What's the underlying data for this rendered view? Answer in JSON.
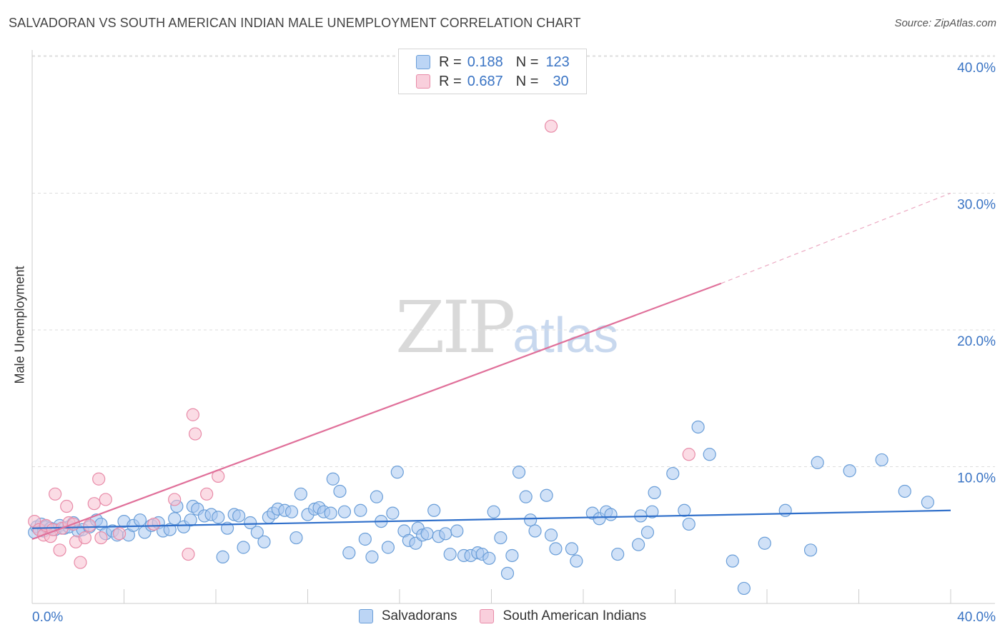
{
  "title": "SALVADORAN VS SOUTH AMERICAN INDIAN MALE UNEMPLOYMENT CORRELATION CHART",
  "source": "Source: ZipAtlas.com",
  "watermark": {
    "zip": "ZIP",
    "atlas": "atlas"
  },
  "colors": {
    "blue_fill": "#a9c8f0",
    "blue_stroke": "#6a9ed8",
    "blue_line": "#2f6fca",
    "pink_fill": "#f7bfd0",
    "pink_stroke": "#e88ba8",
    "pink_line": "#e0709a",
    "tick_label": "#3a74c4",
    "grid": "#dddddd"
  },
  "legend_top": [
    {
      "r_label": "R =",
      "r_value": "0.188",
      "n_label": "N =",
      "n_value": "123"
    },
    {
      "r_label": "R =",
      "r_value": "0.687",
      "n_label": "N =",
      "n_value": "30"
    }
  ],
  "chart_data": {
    "type": "scatter",
    "title": "SALVADORAN VS SOUTH AMERICAN INDIAN MALE UNEMPLOYMENT CORRELATION CHART",
    "xlabel": "",
    "ylabel": "Male Unemployment",
    "xlim": [
      0,
      40
    ],
    "ylim": [
      0,
      42
    ],
    "x_tick_labels": [
      "0.0%",
      "40.0%"
    ],
    "y_ticks": [
      10,
      20,
      30,
      40
    ],
    "y_tick_labels": [
      "10.0%",
      "20.0%",
      "30.0%",
      "40.0%"
    ],
    "grid": "horizontal dashed",
    "legend_position": "top-center and bottom",
    "series": [
      {
        "name": "Salvadorans",
        "color": "#a9c8f0",
        "trend": {
          "x1": 0,
          "y1": 5.5,
          "x2": 40,
          "y2": 6.8
        },
        "points": [
          [
            0.1,
            5.2
          ],
          [
            0.2,
            5.6
          ],
          [
            0.3,
            5.4
          ],
          [
            0.4,
            5.8
          ],
          [
            0.5,
            5.3
          ],
          [
            0.6,
            5.6
          ],
          [
            0.8,
            5.5
          ],
          [
            1.0,
            5.4
          ],
          [
            1.2,
            5.7
          ],
          [
            1.4,
            5.5
          ],
          [
            1.6,
            5.6
          ],
          [
            1.8,
            5.9
          ],
          [
            2.0,
            5.3
          ],
          [
            2.2,
            5.4
          ],
          [
            2.5,
            5.6
          ],
          [
            2.8,
            6.1
          ],
          [
            3.0,
            5.8
          ],
          [
            3.2,
            5.1
          ],
          [
            3.5,
            5.3
          ],
          [
            3.7,
            5.0
          ],
          [
            4.0,
            6.0
          ],
          [
            4.2,
            5.0
          ],
          [
            4.4,
            5.7
          ],
          [
            4.7,
            6.1
          ],
          [
            4.9,
            5.2
          ],
          [
            5.2,
            5.7
          ],
          [
            5.5,
            5.9
          ],
          [
            5.7,
            5.3
          ],
          [
            6.0,
            5.4
          ],
          [
            6.2,
            6.2
          ],
          [
            6.3,
            7.1
          ],
          [
            6.6,
            5.6
          ],
          [
            6.9,
            6.1
          ],
          [
            7.0,
            7.1
          ],
          [
            7.2,
            6.9
          ],
          [
            7.5,
            6.4
          ],
          [
            7.8,
            6.5
          ],
          [
            8.1,
            6.3
          ],
          [
            8.3,
            3.4
          ],
          [
            8.5,
            5.5
          ],
          [
            8.8,
            6.5
          ],
          [
            9.0,
            6.4
          ],
          [
            9.2,
            4.1
          ],
          [
            9.5,
            5.9
          ],
          [
            9.8,
            5.2
          ],
          [
            10.1,
            4.5
          ],
          [
            10.3,
            6.3
          ],
          [
            10.5,
            6.6
          ],
          [
            10.7,
            6.9
          ],
          [
            11.0,
            6.8
          ],
          [
            11.3,
            6.7
          ],
          [
            11.5,
            4.8
          ],
          [
            11.7,
            8.0
          ],
          [
            12.0,
            6.5
          ],
          [
            12.3,
            6.9
          ],
          [
            12.5,
            7.0
          ],
          [
            12.7,
            6.7
          ],
          [
            13.0,
            6.6
          ],
          [
            13.1,
            9.1
          ],
          [
            13.4,
            8.2
          ],
          [
            13.6,
            6.7
          ],
          [
            13.8,
            3.7
          ],
          [
            14.3,
            6.8
          ],
          [
            14.5,
            4.7
          ],
          [
            14.8,
            3.4
          ],
          [
            15.0,
            7.8
          ],
          [
            15.2,
            6.0
          ],
          [
            15.5,
            4.1
          ],
          [
            15.7,
            6.6
          ],
          [
            15.9,
            9.6
          ],
          [
            16.2,
            5.3
          ],
          [
            16.4,
            4.6
          ],
          [
            16.7,
            4.4
          ],
          [
            16.8,
            5.5
          ],
          [
            17.0,
            5.0
          ],
          [
            17.2,
            5.1
          ],
          [
            17.5,
            6.8
          ],
          [
            17.7,
            4.9
          ],
          [
            18.0,
            5.1
          ],
          [
            18.2,
            3.6
          ],
          [
            18.5,
            5.3
          ],
          [
            18.8,
            3.5
          ],
          [
            19.1,
            3.5
          ],
          [
            19.4,
            3.7
          ],
          [
            19.6,
            3.6
          ],
          [
            19.9,
            3.3
          ],
          [
            20.1,
            6.7
          ],
          [
            20.4,
            4.8
          ],
          [
            20.7,
            2.2
          ],
          [
            20.9,
            3.5
          ],
          [
            21.2,
            9.6
          ],
          [
            21.5,
            7.8
          ],
          [
            21.7,
            6.1
          ],
          [
            21.9,
            5.3
          ],
          [
            22.4,
            7.9
          ],
          [
            22.6,
            5.0
          ],
          [
            22.8,
            4.0
          ],
          [
            23.5,
            4.0
          ],
          [
            23.7,
            3.1
          ],
          [
            24.4,
            6.6
          ],
          [
            24.7,
            6.2
          ],
          [
            25.0,
            6.7
          ],
          [
            25.2,
            6.5
          ],
          [
            25.5,
            3.6
          ],
          [
            26.4,
            4.3
          ],
          [
            26.5,
            6.4
          ],
          [
            26.8,
            5.2
          ],
          [
            27.0,
            6.7
          ],
          [
            27.1,
            8.1
          ],
          [
            27.9,
            9.5
          ],
          [
            28.4,
            6.8
          ],
          [
            28.6,
            5.8
          ],
          [
            29.0,
            12.9
          ],
          [
            29.5,
            10.9
          ],
          [
            30.5,
            3.1
          ],
          [
            31.0,
            1.1
          ],
          [
            31.9,
            4.4
          ],
          [
            32.8,
            6.8
          ],
          [
            33.9,
            3.9
          ],
          [
            34.2,
            10.3
          ],
          [
            35.6,
            9.7
          ],
          [
            37.0,
            10.5
          ],
          [
            38.0,
            8.2
          ],
          [
            39.0,
            7.4
          ]
        ]
      },
      {
        "name": "South American Indians",
        "color": "#f7bfd0",
        "trend": {
          "x1": 0,
          "y1": 4.7,
          "x2": 30,
          "y2": 23.4
        },
        "trend_extension": {
          "x1": 30,
          "y1": 23.4,
          "x2": 40,
          "y2": 30.0
        },
        "points": [
          [
            0.1,
            6.0
          ],
          [
            0.3,
            5.4
          ],
          [
            0.5,
            5.0
          ],
          [
            0.6,
            5.7
          ],
          [
            0.8,
            4.9
          ],
          [
            0.9,
            5.4
          ],
          [
            1.0,
            8.0
          ],
          [
            1.2,
            3.9
          ],
          [
            1.3,
            5.5
          ],
          [
            1.5,
            7.1
          ],
          [
            1.6,
            5.9
          ],
          [
            1.8,
            5.8
          ],
          [
            1.9,
            4.5
          ],
          [
            2.1,
            3.0
          ],
          [
            2.3,
            4.8
          ],
          [
            2.5,
            5.7
          ],
          [
            2.7,
            7.3
          ],
          [
            2.9,
            9.1
          ],
          [
            3.0,
            4.8
          ],
          [
            3.2,
            7.6
          ],
          [
            3.8,
            5.1
          ],
          [
            5.3,
            5.8
          ],
          [
            6.2,
            7.6
          ],
          [
            6.8,
            3.6
          ],
          [
            7.0,
            13.8
          ],
          [
            7.1,
            12.4
          ],
          [
            7.6,
            8.0
          ],
          [
            8.1,
            9.3
          ],
          [
            22.6,
            34.9
          ],
          [
            28.6,
            10.9
          ]
        ]
      }
    ]
  },
  "legend_bottom": [
    {
      "label": "Salvadorans"
    },
    {
      "label": "South American Indians"
    }
  ]
}
